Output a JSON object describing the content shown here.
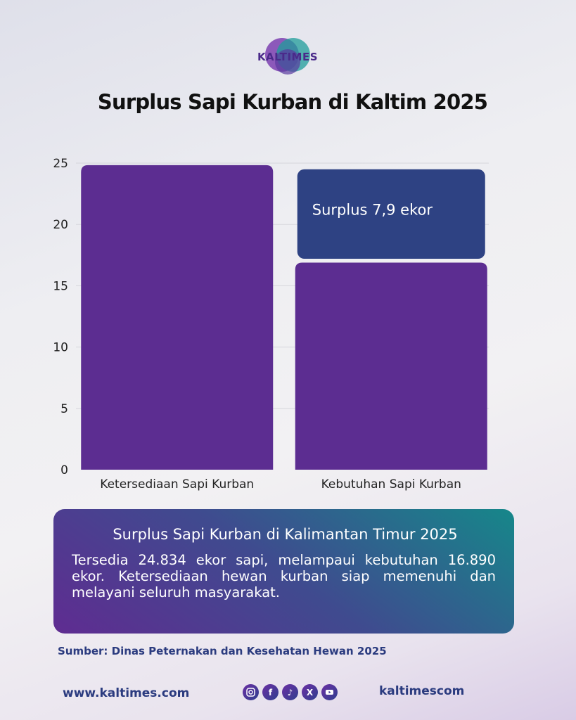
{
  "brand": {
    "logo_text": "KALTIMES",
    "colors": {
      "purple": "#5c2d91",
      "navy": "#2e4283",
      "teal": "#16878a",
      "text_dark": "#111111",
      "footer_text": "#2b3b7f"
    }
  },
  "chart_data": {
    "type": "bar",
    "title": "Surplus Sapi Kurban di Kaltim 2025",
    "categories": [
      "Ketersediaan Sapi Kurban",
      "Kebutuhan Sapi Kurban"
    ],
    "series": [
      {
        "values": [
          24.834,
          16.89
        ],
        "color": "#5c2d91"
      }
    ],
    "stacked_annotation": {
      "category_index": 1,
      "from": 17.2,
      "to": 24.5,
      "label": "Surplus 7,9 ekor",
      "color": "#2e4283"
    },
    "yticks": [
      0,
      5,
      10,
      15,
      20,
      25
    ],
    "ylim": [
      0,
      25
    ],
    "xlabel": "",
    "ylabel": "",
    "grid": true,
    "legend": "none"
  },
  "info": {
    "title": "Surplus Sapi Kurban di Kalimantan Timur 2025",
    "body": "Tersedia 24.834 ekor sapi, melampaui kebutuhan 16.890 ekor. Ketersediaan hewan kurban siap memenuhi dan melayani seluruh masyarakat."
  },
  "source": "Sumber: Dinas Peternakan dan Kesehatan Hewan 2025",
  "footer": {
    "website": "www.kaltimes.com",
    "handle": "kaltimescom",
    "social_icons": [
      "instagram-icon",
      "facebook-icon",
      "tiktok-icon",
      "x-icon",
      "youtube-icon"
    ]
  }
}
